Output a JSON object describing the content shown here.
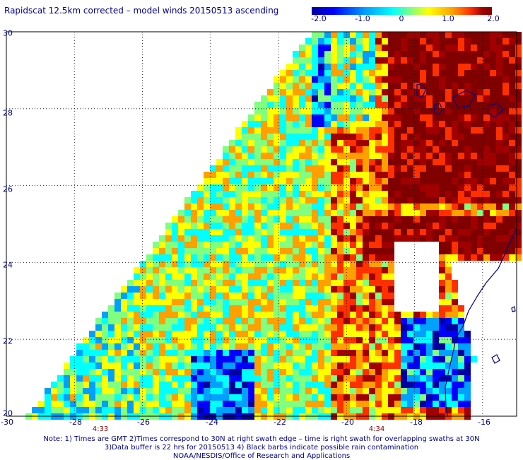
{
  "title": "Rapidscat 12.5km corrected – model winds 20150513 ascending",
  "colorbar": {
    "labels": [
      "-2.0",
      "-1.0",
      "0",
      "1.0",
      "2.0"
    ],
    "colors": [
      "#0000a0",
      "#0000ff",
      "#00a0ff",
      "#00ffff",
      "#80ff80",
      "#ffff00",
      "#ffa000",
      "#ff3000",
      "#a00000",
      "#800000"
    ]
  },
  "axes": {
    "x_ticks": [
      "-30",
      "-28",
      "-26",
      "-24",
      "-22",
      "-20",
      "-18",
      "-16"
    ],
    "y_ticks": [
      "20",
      "22",
      "24",
      "26",
      "28",
      "30"
    ]
  },
  "times": [
    "4:33",
    "4:34"
  ],
  "notes": [
    "Note: 1) Times are GMT 2)Times correspond to 30N at right swath edge – time is right swath for overlapping swaths at 30N",
    "3)Data buffer is 22 hrs for 20150513 4) Black barbs indicate possible rain contamination",
    "NOAA/NESDIS/Office of Research and Applications"
  ],
  "map": {
    "coastline_color": "#000080",
    "grid_color": "#000000",
    "value_range": [
      -2.0,
      2.0
    ]
  }
}
